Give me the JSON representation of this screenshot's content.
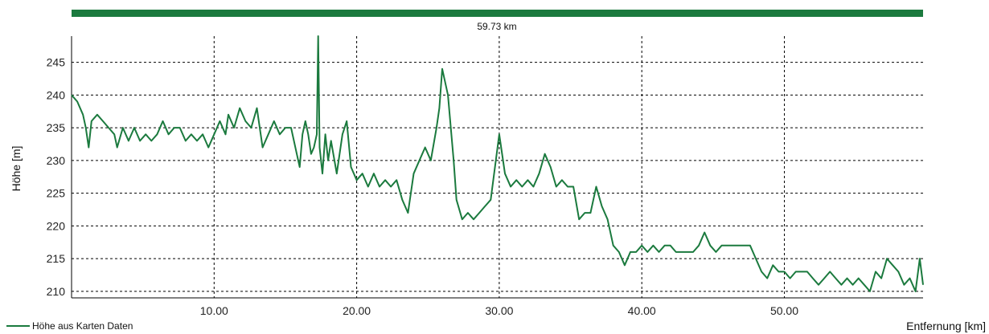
{
  "chart_data": {
    "type": "line",
    "total_distance_label": "59.73 km",
    "xlabel": "Entfernung [km]",
    "ylabel": "Höhe [m]",
    "xlim": [
      0,
      59.73
    ],
    "ylim": [
      209,
      249
    ],
    "x_ticks": [
      10,
      20,
      30,
      40,
      50
    ],
    "x_tick_labels": [
      "10.00",
      "20.00",
      "30.00",
      "40.00",
      "50.00"
    ],
    "y_ticks": [
      210,
      215,
      220,
      225,
      230,
      235,
      240,
      245
    ],
    "y_tick_labels": [
      "210",
      "215",
      "220",
      "225",
      "230",
      "235",
      "240",
      "245"
    ],
    "grid": true,
    "legend_position": "bottom-left",
    "colors": {
      "series": "#1b7a3e",
      "grid": "#000000"
    },
    "series": [
      {
        "name": "Höhe aus Karten Daten",
        "points": [
          [
            0.0,
            240
          ],
          [
            0.4,
            239
          ],
          [
            0.8,
            237
          ],
          [
            1.0,
            235
          ],
          [
            1.2,
            232
          ],
          [
            1.4,
            236
          ],
          [
            1.8,
            237
          ],
          [
            2.2,
            236
          ],
          [
            2.6,
            235
          ],
          [
            3.0,
            234
          ],
          [
            3.2,
            232
          ],
          [
            3.6,
            235
          ],
          [
            4.0,
            233
          ],
          [
            4.4,
            235
          ],
          [
            4.8,
            233
          ],
          [
            5.2,
            234
          ],
          [
            5.6,
            233
          ],
          [
            6.0,
            234
          ],
          [
            6.4,
            236
          ],
          [
            6.8,
            234
          ],
          [
            7.2,
            235
          ],
          [
            7.6,
            235
          ],
          [
            8.0,
            233
          ],
          [
            8.4,
            234
          ],
          [
            8.8,
            233
          ],
          [
            9.2,
            234
          ],
          [
            9.6,
            232
          ],
          [
            10.0,
            234
          ],
          [
            10.4,
            236
          ],
          [
            10.8,
            234
          ],
          [
            11.0,
            237
          ],
          [
            11.4,
            235
          ],
          [
            11.8,
            238
          ],
          [
            12.2,
            236
          ],
          [
            12.6,
            235
          ],
          [
            13.0,
            238
          ],
          [
            13.4,
            232
          ],
          [
            13.8,
            234
          ],
          [
            14.2,
            236
          ],
          [
            14.6,
            234
          ],
          [
            15.0,
            235
          ],
          [
            15.4,
            235
          ],
          [
            15.8,
            231
          ],
          [
            16.0,
            229
          ],
          [
            16.2,
            234
          ],
          [
            16.4,
            236
          ],
          [
            16.6,
            234
          ],
          [
            16.8,
            231
          ],
          [
            17.0,
            232
          ],
          [
            17.2,
            234
          ],
          [
            17.3,
            249
          ],
          [
            17.4,
            232
          ],
          [
            17.6,
            228
          ],
          [
            17.8,
            234
          ],
          [
            18.0,
            230
          ],
          [
            18.2,
            233
          ],
          [
            18.6,
            228
          ],
          [
            19.0,
            234
          ],
          [
            19.3,
            236
          ],
          [
            19.6,
            229
          ],
          [
            20.0,
            227
          ],
          [
            20.4,
            228
          ],
          [
            20.8,
            226
          ],
          [
            21.2,
            228
          ],
          [
            21.6,
            226
          ],
          [
            22.0,
            227
          ],
          [
            22.4,
            226
          ],
          [
            22.8,
            227
          ],
          [
            23.2,
            224
          ],
          [
            23.6,
            222
          ],
          [
            24.0,
            228
          ],
          [
            24.4,
            230
          ],
          [
            24.8,
            232
          ],
          [
            25.2,
            230
          ],
          [
            25.6,
            235
          ],
          [
            25.8,
            238
          ],
          [
            26.0,
            244
          ],
          [
            26.4,
            240
          ],
          [
            26.8,
            230
          ],
          [
            27.0,
            224
          ],
          [
            27.4,
            221
          ],
          [
            27.8,
            222
          ],
          [
            28.2,
            221
          ],
          [
            28.6,
            222
          ],
          [
            29.0,
            223
          ],
          [
            29.4,
            224
          ],
          [
            29.7,
            229
          ],
          [
            30.0,
            234
          ],
          [
            30.4,
            228
          ],
          [
            30.8,
            226
          ],
          [
            31.2,
            227
          ],
          [
            31.6,
            226
          ],
          [
            32.0,
            227
          ],
          [
            32.4,
            226
          ],
          [
            32.8,
            228
          ],
          [
            33.2,
            231
          ],
          [
            33.6,
            229
          ],
          [
            34.0,
            226
          ],
          [
            34.4,
            227
          ],
          [
            34.8,
            226
          ],
          [
            35.2,
            226
          ],
          [
            35.6,
            221
          ],
          [
            36.0,
            222
          ],
          [
            36.4,
            222
          ],
          [
            36.8,
            226
          ],
          [
            37.2,
            223
          ],
          [
            37.6,
            221
          ],
          [
            38.0,
            217
          ],
          [
            38.4,
            216
          ],
          [
            38.8,
            214
          ],
          [
            39.2,
            216
          ],
          [
            39.6,
            216
          ],
          [
            40.0,
            217
          ],
          [
            40.4,
            216
          ],
          [
            40.8,
            217
          ],
          [
            41.2,
            216
          ],
          [
            41.6,
            217
          ],
          [
            42.0,
            217
          ],
          [
            42.4,
            216
          ],
          [
            42.8,
            216
          ],
          [
            43.2,
            216
          ],
          [
            43.6,
            216
          ],
          [
            44.0,
            217
          ],
          [
            44.4,
            219
          ],
          [
            44.8,
            217
          ],
          [
            45.2,
            216
          ],
          [
            45.6,
            217
          ],
          [
            46.0,
            217
          ],
          [
            46.4,
            217
          ],
          [
            46.8,
            217
          ],
          [
            47.2,
            217
          ],
          [
            47.6,
            217
          ],
          [
            48.0,
            215
          ],
          [
            48.4,
            213
          ],
          [
            48.8,
            212
          ],
          [
            49.2,
            214
          ],
          [
            49.6,
            213
          ],
          [
            50.0,
            213
          ],
          [
            50.4,
            212
          ],
          [
            50.8,
            213
          ],
          [
            51.2,
            213
          ],
          [
            51.6,
            213
          ],
          [
            52.0,
            212
          ],
          [
            52.4,
            211
          ],
          [
            52.8,
            212
          ],
          [
            53.2,
            213
          ],
          [
            53.6,
            212
          ],
          [
            54.0,
            211
          ],
          [
            54.4,
            212
          ],
          [
            54.8,
            211
          ],
          [
            55.2,
            212
          ],
          [
            55.6,
            211
          ],
          [
            56.0,
            210
          ],
          [
            56.4,
            213
          ],
          [
            56.8,
            212
          ],
          [
            57.2,
            215
          ],
          [
            57.6,
            214
          ],
          [
            58.0,
            213
          ],
          [
            58.4,
            211
          ],
          [
            58.8,
            212
          ],
          [
            59.2,
            210
          ],
          [
            59.5,
            215
          ],
          [
            59.73,
            211
          ]
        ]
      }
    ]
  }
}
